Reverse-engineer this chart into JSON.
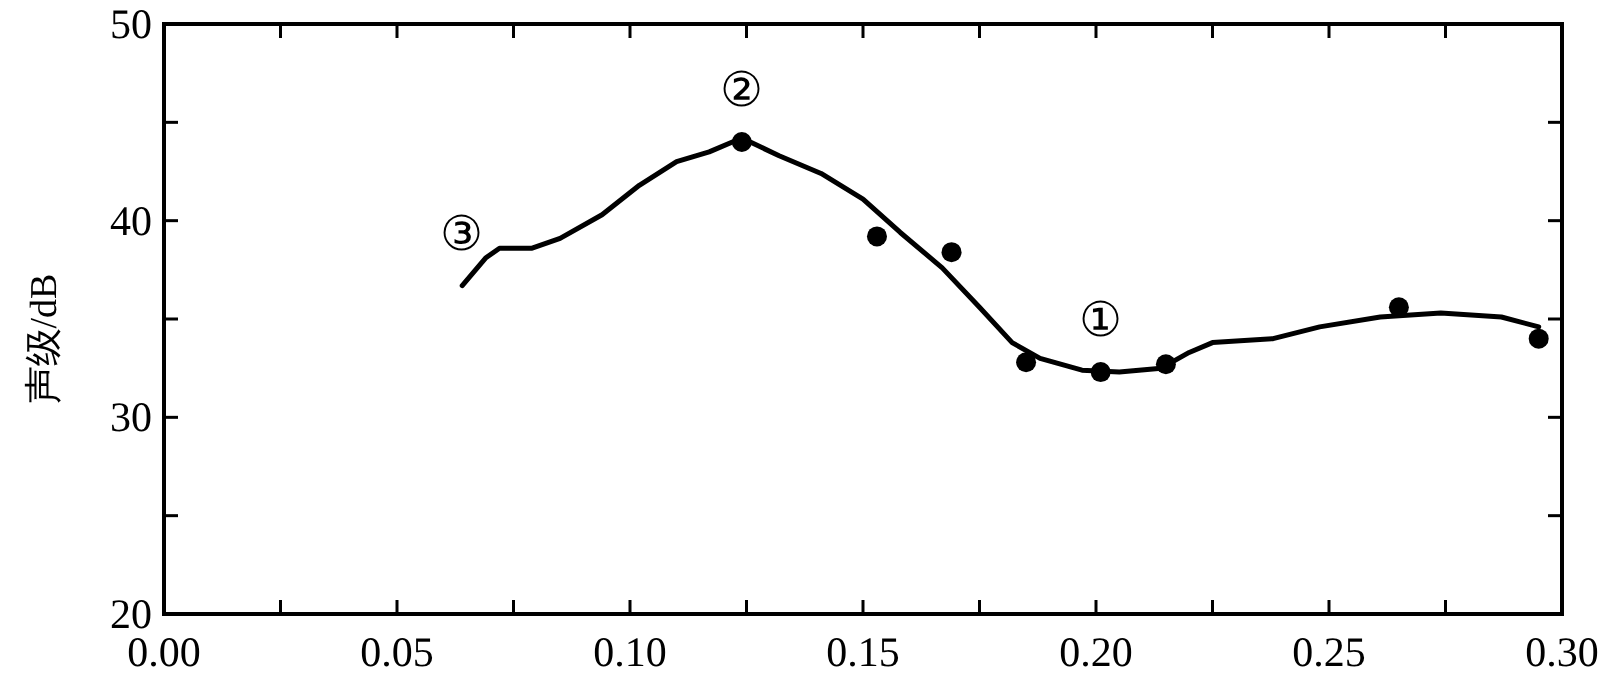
{
  "chart_data": {
    "type": "line",
    "ylabel": "声级/dB",
    "xlim": [
      0,
      0.3
    ],
    "ylim": [
      20,
      50
    ],
    "xticks": [
      {
        "value": 0,
        "label": "0.00"
      },
      {
        "value": 0.025,
        "label": null
      },
      {
        "value": 0.05,
        "label": "0.05"
      },
      {
        "value": 0.075,
        "label": null
      },
      {
        "value": 0.1,
        "label": "0.10"
      },
      {
        "value": 0.125,
        "label": null
      },
      {
        "value": 0.15,
        "label": "0.15"
      },
      {
        "value": 0.175,
        "label": null
      },
      {
        "value": 0.2,
        "label": "0.20"
      },
      {
        "value": 0.225,
        "label": null
      },
      {
        "value": 0.25,
        "label": "0.25"
      },
      {
        "value": 0.275,
        "label": null
      },
      {
        "value": 0.3,
        "label": "0.30"
      }
    ],
    "yticks": [
      20,
      {
        "value": 25,
        "label": null
      },
      30,
      {
        "value": 35,
        "label": null
      },
      40,
      {
        "value": 45,
        "label": null
      },
      50
    ],
    "grid": false,
    "series": [
      {
        "type": "line",
        "color": "#000000",
        "marker": "none",
        "line_style": "solid",
        "x": [
          0.064,
          0.069,
          0.072,
          0.079,
          0.085,
          0.094,
          0.102,
          0.11,
          0.117,
          0.124,
          0.132,
          0.141,
          0.15,
          0.158,
          0.167,
          0.175,
          0.182,
          0.188,
          0.197,
          0.205,
          0.214,
          0.22,
          0.225,
          0.238,
          0.248,
          0.261,
          0.274,
          0.287,
          0.295
        ],
        "values": [
          36.7,
          38.1,
          38.6,
          38.6,
          39.1,
          40.3,
          41.8,
          43.0,
          43.5,
          44.2,
          43.3,
          42.4,
          41.1,
          39.4,
          37.6,
          35.6,
          33.8,
          33.0,
          32.4,
          32.3,
          32.5,
          33.3,
          33.8,
          34.0,
          34.6,
          35.1,
          35.3,
          35.1,
          34.6
        ]
      },
      {
        "type": "scatter",
        "color": "#000000",
        "marker": "circle",
        "x": [
          0.124,
          0.153,
          0.169,
          0.185,
          0.201,
          0.215,
          0.265,
          0.295
        ],
        "values": [
          44.0,
          39.2,
          38.4,
          32.8,
          32.3,
          32.7,
          35.6,
          34.0
        ]
      }
    ],
    "annotations": [
      {
        "text": "③",
        "x": 0.064,
        "y": 36.7
      },
      {
        "text": "②",
        "x": 0.124,
        "y": 44.0
      },
      {
        "text": "①",
        "x": 0.201,
        "y": 32.3
      }
    ]
  }
}
